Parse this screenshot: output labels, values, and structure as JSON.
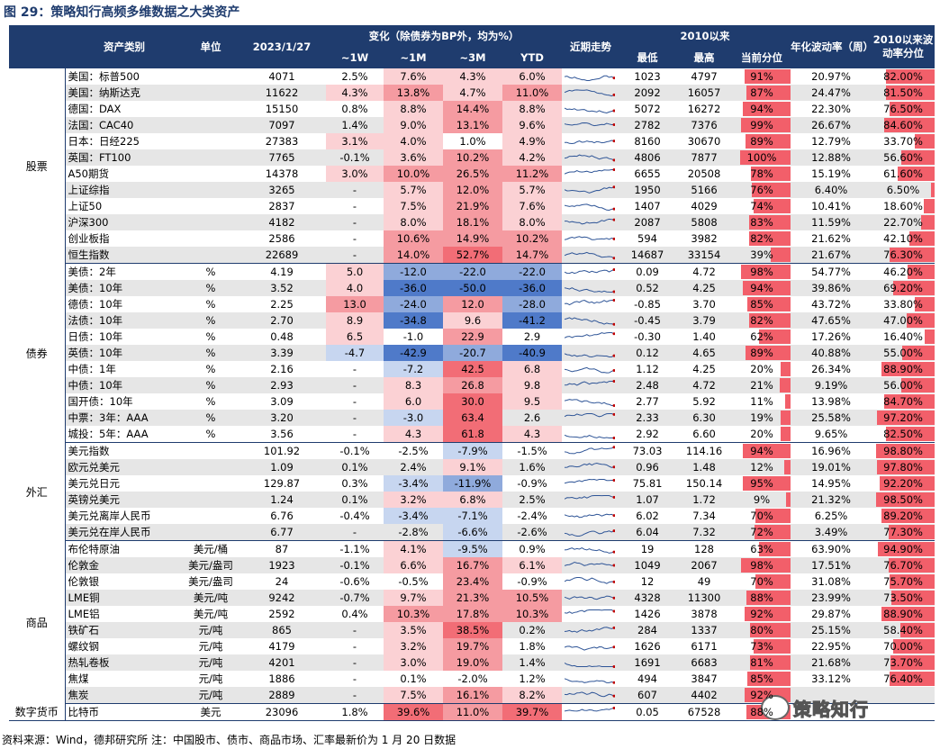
{
  "title": "图 29：策略知行高频多维数据之大类资产",
  "header": {
    "group_row": [
      "",
      "资产类别",
      "单位",
      "2023/1/27",
      "变化（除债券为BP外，均为%）",
      "近期走势",
      "2010以来",
      "",
      "",
      "年化波动率（周）",
      "2010以来波动率分位"
    ],
    "sub_row": [
      "~1W",
      "~1M",
      "~3M",
      "YTD",
      "最低",
      "最高",
      "当前分位"
    ]
  },
  "groups": [
    {
      "name": "股票",
      "rows": [
        {
          "name": "美国：标普500",
          "unit": "",
          "val": "4071",
          "w": "2.5%",
          "m": "7.6%",
          "q": "4.3%",
          "ytd": "6.0%",
          "low": "1023",
          "high": "4797",
          "pct": "91%",
          "pctv": 91,
          "vol": "20.97%",
          "volpct": "82.00%",
          "volv": 82.0
        },
        {
          "name": "美国：纳斯达克",
          "unit": "",
          "val": "11622",
          "w": "4.3%",
          "m": "13.8%",
          "q": "4.7%",
          "ytd": "11.0%",
          "low": "2092",
          "high": "16057",
          "pct": "87%",
          "pctv": 87,
          "vol": "24.47%",
          "volpct": "81.50%",
          "volv": 81.5
        },
        {
          "name": "德国：DAX",
          "unit": "",
          "val": "15150",
          "w": "0.8%",
          "m": "8.8%",
          "q": "14.4%",
          "ytd": "8.8%",
          "low": "5072",
          "high": "16272",
          "pct": "94%",
          "pctv": 94,
          "vol": "22.30%",
          "volpct": "76.50%",
          "volv": 76.5
        },
        {
          "name": "法国：CAC40",
          "unit": "",
          "val": "7097",
          "w": "1.4%",
          "m": "9.0%",
          "q": "13.1%",
          "ytd": "9.6%",
          "low": "2782",
          "high": "7376",
          "pct": "99%",
          "pctv": 99,
          "vol": "26.67%",
          "volpct": "84.60%",
          "volv": 84.6
        },
        {
          "name": "日本：日经225",
          "unit": "",
          "val": "27383",
          "w": "3.1%",
          "m": "4.0%",
          "q": "1.0%",
          "ytd": "4.9%",
          "low": "8160",
          "high": "30670",
          "pct": "89%",
          "pctv": 89,
          "vol": "12.79%",
          "volpct": "33.70%",
          "volv": 33.7
        },
        {
          "name": "英国：FT100",
          "unit": "",
          "val": "7765",
          "w": "-0.1%",
          "m": "3.6%",
          "q": "10.2%",
          "ytd": "4.2%",
          "low": "4806",
          "high": "7877",
          "pct": "100%",
          "pctv": 100,
          "vol": "12.88%",
          "volpct": "56.60%",
          "volv": 56.6
        },
        {
          "name": "A50期货",
          "unit": "",
          "val": "14378",
          "w": "3.0%",
          "m": "10.0%",
          "q": "26.5%",
          "ytd": "11.2%",
          "low": "6655",
          "high": "20508",
          "pct": "78%",
          "pctv": 78,
          "vol": "15.19%",
          "volpct": "61.60%",
          "volv": 61.6
        },
        {
          "name": "上证综指",
          "unit": "",
          "val": "3265",
          "w": "-",
          "m": "5.7%",
          "q": "12.0%",
          "ytd": "5.7%",
          "low": "1950",
          "high": "5166",
          "pct": "76%",
          "pctv": 76,
          "vol": "6.40%",
          "volpct": "6.50%",
          "volv": 6.5
        },
        {
          "name": "上证50",
          "unit": "",
          "val": "2837",
          "w": "-",
          "m": "7.5%",
          "q": "21.9%",
          "ytd": "7.6%",
          "low": "1407",
          "high": "4029",
          "pct": "74%",
          "pctv": 74,
          "vol": "10.41%",
          "volpct": "18.60%",
          "volv": 18.6
        },
        {
          "name": "沪深300",
          "unit": "",
          "val": "4182",
          "w": "-",
          "m": "8.0%",
          "q": "18.1%",
          "ytd": "8.0%",
          "low": "2087",
          "high": "5808",
          "pct": "83%",
          "pctv": 83,
          "vol": "11.59%",
          "volpct": "22.70%",
          "volv": 22.7
        },
        {
          "name": "创业板指",
          "unit": "",
          "val": "2586",
          "w": "-",
          "m": "10.6%",
          "q": "14.9%",
          "ytd": "10.2%",
          "low": "594",
          "high": "3982",
          "pct": "82%",
          "pctv": 82,
          "vol": "21.62%",
          "volpct": "42.10%",
          "volv": 42.1
        },
        {
          "name": "恒生指数",
          "unit": "",
          "val": "22689",
          "w": "-",
          "m": "14.0%",
          "q": "52.7%",
          "ytd": "14.7%",
          "low": "14687",
          "high": "33154",
          "pct": "39%",
          "pctv": 39,
          "vol": "21.67%",
          "volpct": "76.30%",
          "volv": 76.3
        }
      ]
    },
    {
      "name": "债券",
      "rows": [
        {
          "name": "美债：2年",
          "unit": "%",
          "val": "4.19",
          "w": "5.0",
          "m": "-12.0",
          "q": "-22.0",
          "ytd": "-22.0",
          "low": "0.09",
          "high": "4.72",
          "pct": "98%",
          "pctv": 98,
          "vol": "54.77%",
          "volpct": "46.20%",
          "volv": 46.2
        },
        {
          "name": "美债：10年",
          "unit": "%",
          "val": "3.52",
          "w": "4.0",
          "m": "-36.0",
          "q": "-50.0",
          "ytd": "-36.0",
          "low": "0.52",
          "high": "4.25",
          "pct": "94%",
          "pctv": 94,
          "vol": "39.86%",
          "volpct": "69.20%",
          "volv": 69.2
        },
        {
          "name": "德债：10年",
          "unit": "%",
          "val": "2.25",
          "w": "13.0",
          "m": "-24.0",
          "q": "12.0",
          "ytd": "-28.0",
          "low": "-0.85",
          "high": "3.70",
          "pct": "85%",
          "pctv": 85,
          "vol": "43.72%",
          "volpct": "33.80%",
          "volv": 33.8
        },
        {
          "name": "法债：10年",
          "unit": "%",
          "val": "2.70",
          "w": "8.9",
          "m": "-34.8",
          "q": "9.6",
          "ytd": "-41.2",
          "low": "-0.45",
          "high": "3.79",
          "pct": "82%",
          "pctv": 82,
          "vol": "47.65%",
          "volpct": "47.00%",
          "volv": 47.0
        },
        {
          "name": "日债：10年",
          "unit": "%",
          "val": "0.48",
          "w": "6.5",
          "m": "-1.0",
          "q": "22.9",
          "ytd": "2.9",
          "low": "-0.30",
          "high": "1.40",
          "pct": "62%",
          "pctv": 62,
          "vol": "17.26%",
          "volpct": "16.40%",
          "volv": 16.4
        },
        {
          "name": "英债：10年",
          "unit": "%",
          "val": "3.39",
          "w": "-4.7",
          "m": "-42.9",
          "q": "-20.7",
          "ytd": "-40.9",
          "low": "0.12",
          "high": "4.65",
          "pct": "89%",
          "pctv": 89,
          "vol": "40.88%",
          "volpct": "55.00%",
          "volv": 55.0
        },
        {
          "name": "中债：1年",
          "unit": "%",
          "val": "2.16",
          "w": "-",
          "m": "-7.2",
          "q": "42.5",
          "ytd": "6.8",
          "low": "1.12",
          "high": "4.25",
          "pct": "20%",
          "pctv": 20,
          "vol": "26.34%",
          "volpct": "88.90%",
          "volv": 88.9
        },
        {
          "name": "中债：10年",
          "unit": "%",
          "val": "2.93",
          "w": "-",
          "m": "8.3",
          "q": "26.8",
          "ytd": "9.8",
          "low": "2.48",
          "high": "4.72",
          "pct": "21%",
          "pctv": 21,
          "vol": "9.19%",
          "volpct": "56.00%",
          "volv": 56.0
        },
        {
          "name": "国开债：10年",
          "unit": "%",
          "val": "3.09",
          "w": "-",
          "m": "6.0",
          "q": "30.0",
          "ytd": "9.5",
          "low": "2.77",
          "high": "5.92",
          "pct": "11%",
          "pctv": 11,
          "vol": "13.98%",
          "volpct": "84.70%",
          "volv": 84.7
        },
        {
          "name": "中票：3年：AAA",
          "unit": "%",
          "val": "3.20",
          "w": "-",
          "m": "-3.0",
          "q": "63.4",
          "ytd": "2.6",
          "low": "2.33",
          "high": "6.30",
          "pct": "19%",
          "pctv": 19,
          "vol": "25.58%",
          "volpct": "97.20%",
          "volv": 97.2
        },
        {
          "name": "城投：5年：AAA",
          "unit": "%",
          "val": "3.56",
          "w": "-",
          "m": "4.3",
          "q": "61.8",
          "ytd": "4.3",
          "low": "2.92",
          "high": "6.60",
          "pct": "20%",
          "pctv": 20,
          "vol": "9.65%",
          "volpct": "82.50%",
          "volv": 82.5
        }
      ]
    },
    {
      "name": "外汇",
      "rows": [
        {
          "name": "美元指数",
          "unit": "",
          "val": "101.92",
          "w": "-0.1%",
          "m": "-2.5%",
          "q": "-7.9%",
          "ytd": "-1.5%",
          "low": "73.03",
          "high": "114.16",
          "pct": "94%",
          "pctv": 94,
          "vol": "16.96%",
          "volpct": "98.80%",
          "volv": 98.8
        },
        {
          "name": "欧元兑美元",
          "unit": "",
          "val": "1.09",
          "w": "0.1%",
          "m": "2.4%",
          "q": "9.1%",
          "ytd": "1.6%",
          "low": "0.96",
          "high": "1.48",
          "pct": "12%",
          "pctv": 12,
          "vol": "19.01%",
          "volpct": "97.80%",
          "volv": 97.8
        },
        {
          "name": "美元兑日元",
          "unit": "",
          "val": "129.87",
          "w": "0.3%",
          "m": "-3.4%",
          "q": "-11.9%",
          "ytd": "-0.9%",
          "low": "75.81",
          "high": "150.14",
          "pct": "95%",
          "pctv": 95,
          "vol": "14.95%",
          "volpct": "92.20%",
          "volv": 92.2
        },
        {
          "name": "英镑兑美元",
          "unit": "",
          "val": "1.24",
          "w": "0.1%",
          "m": "3.2%",
          "q": "6.8%",
          "ytd": "2.5%",
          "low": "1.07",
          "high": "1.72",
          "pct": "9%",
          "pctv": 9,
          "vol": "21.32%",
          "volpct": "98.50%",
          "volv": 98.5
        },
        {
          "name": "美元兑离岸人民币",
          "unit": "",
          "val": "6.76",
          "w": "-0.4%",
          "m": "-3.4%",
          "q": "-7.1%",
          "ytd": "-2.4%",
          "low": "6.02",
          "high": "7.34",
          "pct": "70%",
          "pctv": 70,
          "vol": "6.25%",
          "volpct": "89.20%",
          "volv": 89.2
        },
        {
          "name": "美元兑在岸人民币",
          "unit": "",
          "val": "6.77",
          "w": "-",
          "m": "-2.8%",
          "q": "-6.6%",
          "ytd": "-2.6%",
          "low": "6.04",
          "high": "7.32",
          "pct": "72%",
          "pctv": 72,
          "vol": "3.49%",
          "volpct": "77.30%",
          "volv": 77.3
        }
      ]
    },
    {
      "name": "商品",
      "rows": [
        {
          "name": "布伦特原油",
          "unit": "美元/桶",
          "val": "87",
          "w": "-1.1%",
          "m": "4.1%",
          "q": "-9.5%",
          "ytd": "0.9%",
          "low": "19",
          "high": "128",
          "pct": "63%",
          "pctv": 63,
          "vol": "63.90%",
          "volpct": "94.90%",
          "volv": 94.9
        },
        {
          "name": "伦敦金",
          "unit": "美元/盎司",
          "val": "1923",
          "w": "-0.1%",
          "m": "6.6%",
          "q": "16.7%",
          "ytd": "6.1%",
          "low": "1049",
          "high": "2067",
          "pct": "98%",
          "pctv": 98,
          "vol": "17.51%",
          "volpct": "76.70%",
          "volv": 76.7
        },
        {
          "name": "伦敦银",
          "unit": "美元/盎司",
          "val": "24",
          "w": "-0.6%",
          "m": "-0.5%",
          "q": "23.4%",
          "ytd": "-0.9%",
          "low": "12",
          "high": "49",
          "pct": "70%",
          "pctv": 70,
          "vol": "31.08%",
          "volpct": "75.70%",
          "volv": 75.7
        },
        {
          "name": "LME铜",
          "unit": "美元/吨",
          "val": "9242",
          "w": "-0.7%",
          "m": "9.7%",
          "q": "21.3%",
          "ytd": "10.5%",
          "low": "4328",
          "high": "11300",
          "pct": "88%",
          "pctv": 88,
          "vol": "23.99%",
          "volpct": "73.50%",
          "volv": 73.5
        },
        {
          "name": "LME铝",
          "unit": "美元/吨",
          "val": "2592",
          "w": "0.4%",
          "m": "10.3%",
          "q": "17.8%",
          "ytd": "10.3%",
          "low": "1426",
          "high": "3878",
          "pct": "92%",
          "pctv": 92,
          "vol": "29.87%",
          "volpct": "88.90%",
          "volv": 88.9
        },
        {
          "name": "铁矿石",
          "unit": "元/吨",
          "val": "865",
          "w": "-",
          "m": "3.5%",
          "q": "38.5%",
          "ytd": "0.2%",
          "low": "284",
          "high": "1337",
          "pct": "80%",
          "pctv": 80,
          "vol": "25.15%",
          "volpct": "58.40%",
          "volv": 58.4
        },
        {
          "name": "螺纹钢",
          "unit": "元/吨",
          "val": "4179",
          "w": "-",
          "m": "3.2%",
          "q": "19.7%",
          "ytd": "1.8%",
          "low": "1626",
          "high": "6171",
          "pct": "73%",
          "pctv": 73,
          "vol": "22.95%",
          "volpct": "70.00%",
          "volv": 70.0
        },
        {
          "name": "热轧卷板",
          "unit": "元/吨",
          "val": "4201",
          "w": "-",
          "m": "3.0%",
          "q": "19.0%",
          "ytd": "1.4%",
          "low": "1691",
          "high": "6683",
          "pct": "81%",
          "pctv": 81,
          "vol": "21.68%",
          "volpct": "73.70%",
          "volv": 73.7
        },
        {
          "name": "焦煤",
          "unit": "元/吨",
          "val": "1886",
          "w": "-",
          "m": "0.1%",
          "q": "-2.0%",
          "ytd": "1.2%",
          "low": "494",
          "high": "3847",
          "pct": "85%",
          "pctv": 85,
          "vol": "33.12%",
          "volpct": "76.40%",
          "volv": 76.4
        },
        {
          "name": "焦炭",
          "unit": "元/吨",
          "val": "2889",
          "w": "-",
          "m": "7.5%",
          "q": "16.1%",
          "ytd": "8.2%",
          "low": "607",
          "high": "4402",
          "pct": "92%",
          "pctv": 92,
          "vol": "",
          "volpct": "",
          "volv": 0
        }
      ]
    },
    {
      "name": "数字货币",
      "rows": [
        {
          "name": "比特币",
          "unit": "美元",
          "val": "23096",
          "w": "1.8%",
          "m": "39.6%",
          "q": "11.0%",
          "ytd": "39.7%",
          "low": "0.05",
          "high": "67528",
          "pct": "88%",
          "pctv": 88,
          "vol": "",
          "volpct": "",
          "volv": 0
        }
      ]
    }
  ],
  "source": "资料来源：Wind，德邦研究所 注：中国股市、债市、商品市场、汇率最新价为 1 月 20 日数据",
  "watermark": "策略知行",
  "colors": {
    "header_bg": "#1f3c6e",
    "bar_red": "#f25f6a",
    "pos_strong": "#f26d76",
    "pos_mid": "#f59ba1",
    "pos_light": "#fbd1d4",
    "neg_strong": "#4f7ac9",
    "neg_mid": "#8faadc",
    "neg_light": "#c7d6f0",
    "row_alt": "#e6e6e6"
  }
}
